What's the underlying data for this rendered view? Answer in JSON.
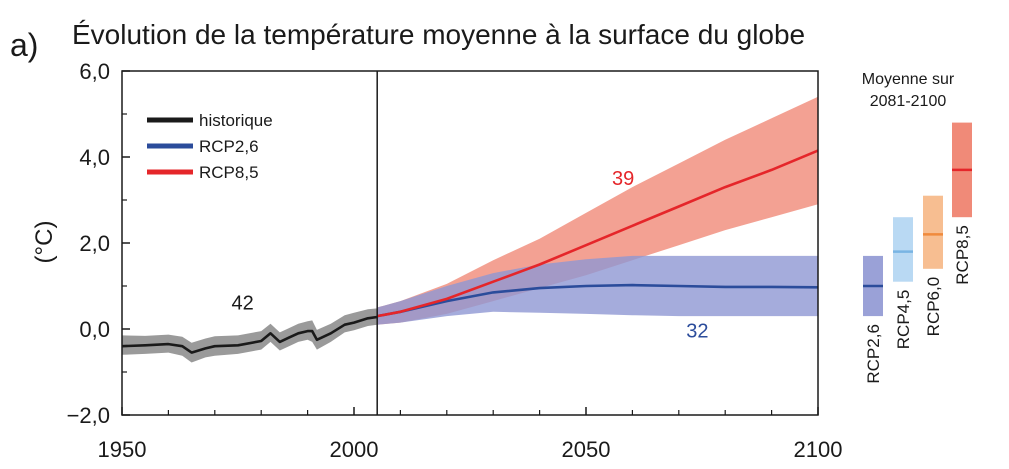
{
  "panel_label": "a)",
  "title": "Évolution de la température moyenne à la surface du globe",
  "colors": {
    "historique": "#1a1a1a",
    "historique_band": "#9a9a9a",
    "rcp26": "#2b4c9b",
    "rcp26_band": "#8f97d3",
    "rcp85": "#e5262a",
    "rcp85_band": "#f08a78",
    "rcp45": "#79b4e3",
    "rcp45_band": "#b9d9f3",
    "rcp60": "#f08a3c",
    "rcp60_band": "#f7be91"
  },
  "chart_data": {
    "type": "area",
    "title": "Évolution de la température moyenne à la surface du globe",
    "ylabel": "(°C)",
    "xlabel": "",
    "xlim": [
      1950,
      2100
    ],
    "ylim": [
      -2.0,
      6.0
    ],
    "x_ticks": [
      "1950",
      "2000",
      "2050",
      "2100"
    ],
    "y_ticks": [
      "−2,0",
      "0,0",
      "2,0",
      "4,0",
      "6,0"
    ],
    "y_tick_values": [
      -2,
      0,
      2,
      4,
      6
    ],
    "x_tick_values": [
      1950,
      2000,
      2050,
      2100
    ],
    "divider_year": 2005,
    "grid": false,
    "legend_position": "top-left",
    "legend": [
      "historique",
      "RCP2,6",
      "RCP8,5"
    ],
    "series": [
      {
        "name": "historique",
        "key": "historique",
        "x": [
          1950,
          1955,
          1960,
          1963,
          1965,
          1968,
          1970,
          1975,
          1980,
          1982,
          1984,
          1986,
          1988,
          1990,
          1991,
          1992,
          1995,
          1998,
          2000,
          2003,
          2005
        ],
        "mean": [
          -0.4,
          -0.38,
          -0.35,
          -0.4,
          -0.55,
          -0.45,
          -0.4,
          -0.38,
          -0.28,
          -0.1,
          -0.3,
          -0.2,
          -0.1,
          -0.05,
          -0.05,
          -0.25,
          -0.1,
          0.1,
          0.15,
          0.25,
          0.28
        ],
        "lower": [
          -0.6,
          -0.58,
          -0.55,
          -0.62,
          -0.78,
          -0.66,
          -0.62,
          -0.58,
          -0.48,
          -0.3,
          -0.5,
          -0.4,
          -0.3,
          -0.25,
          -0.3,
          -0.48,
          -0.3,
          -0.08,
          -0.03,
          0.07,
          0.1
        ],
        "upper": [
          -0.15,
          -0.16,
          -0.13,
          -0.18,
          -0.32,
          -0.22,
          -0.17,
          -0.15,
          -0.05,
          0.12,
          -0.08,
          0.02,
          0.12,
          0.18,
          0.2,
          -0.02,
          0.12,
          0.32,
          0.38,
          0.46,
          0.48
        ]
      },
      {
        "name": "RCP2,6",
        "key": "rcp26",
        "x": [
          2005,
          2010,
          2020,
          2030,
          2040,
          2050,
          2060,
          2070,
          2080,
          2090,
          2100
        ],
        "mean": [
          0.3,
          0.4,
          0.65,
          0.85,
          0.95,
          1.0,
          1.02,
          1.0,
          0.98,
          0.98,
          0.97
        ],
        "lower": [
          0.1,
          0.15,
          0.3,
          0.4,
          0.38,
          0.35,
          0.32,
          0.3,
          0.3,
          0.3,
          0.3
        ],
        "upper": [
          0.5,
          0.65,
          1.0,
          1.3,
          1.5,
          1.62,
          1.7,
          1.7,
          1.7,
          1.7,
          1.7
        ]
      },
      {
        "name": "RCP8,5",
        "key": "rcp85",
        "x": [
          2005,
          2010,
          2020,
          2030,
          2040,
          2050,
          2060,
          2070,
          2080,
          2090,
          2100
        ],
        "mean": [
          0.3,
          0.4,
          0.7,
          1.1,
          1.5,
          1.95,
          2.4,
          2.85,
          3.3,
          3.7,
          4.15
        ],
        "lower": [
          0.1,
          0.15,
          0.35,
          0.65,
          0.95,
          1.25,
          1.6,
          1.95,
          2.3,
          2.6,
          2.9
        ],
        "upper": [
          0.5,
          0.65,
          1.05,
          1.6,
          2.1,
          2.7,
          3.3,
          3.85,
          4.4,
          4.9,
          5.4
        ]
      }
    ],
    "model_counts": [
      {
        "label": "42",
        "key": "historique",
        "x": 1976,
        "y": 0.45
      },
      {
        "label": "39",
        "key": "rcp85",
        "x": 2058,
        "y": 3.35
      },
      {
        "label": "32",
        "key": "rcp26",
        "x": 2074,
        "y": -0.2
      }
    ],
    "side_panel": {
      "title_line1": "Moyenne sur",
      "title_line2": "2081-2100",
      "bars": [
        {
          "label": "RCP2,6",
          "key": "rcp26",
          "low": 0.3,
          "high": 1.7,
          "mean": 1.0
        },
        {
          "label": "RCP4,5",
          "key": "rcp45",
          "low": 1.1,
          "high": 2.6,
          "mean": 1.8
        },
        {
          "label": "RCP6,0",
          "key": "rcp60",
          "low": 1.4,
          "high": 3.1,
          "mean": 2.2
        },
        {
          "label": "RCP8,5",
          "key": "rcp85",
          "low": 2.6,
          "high": 4.8,
          "mean": 3.7
        }
      ]
    }
  }
}
